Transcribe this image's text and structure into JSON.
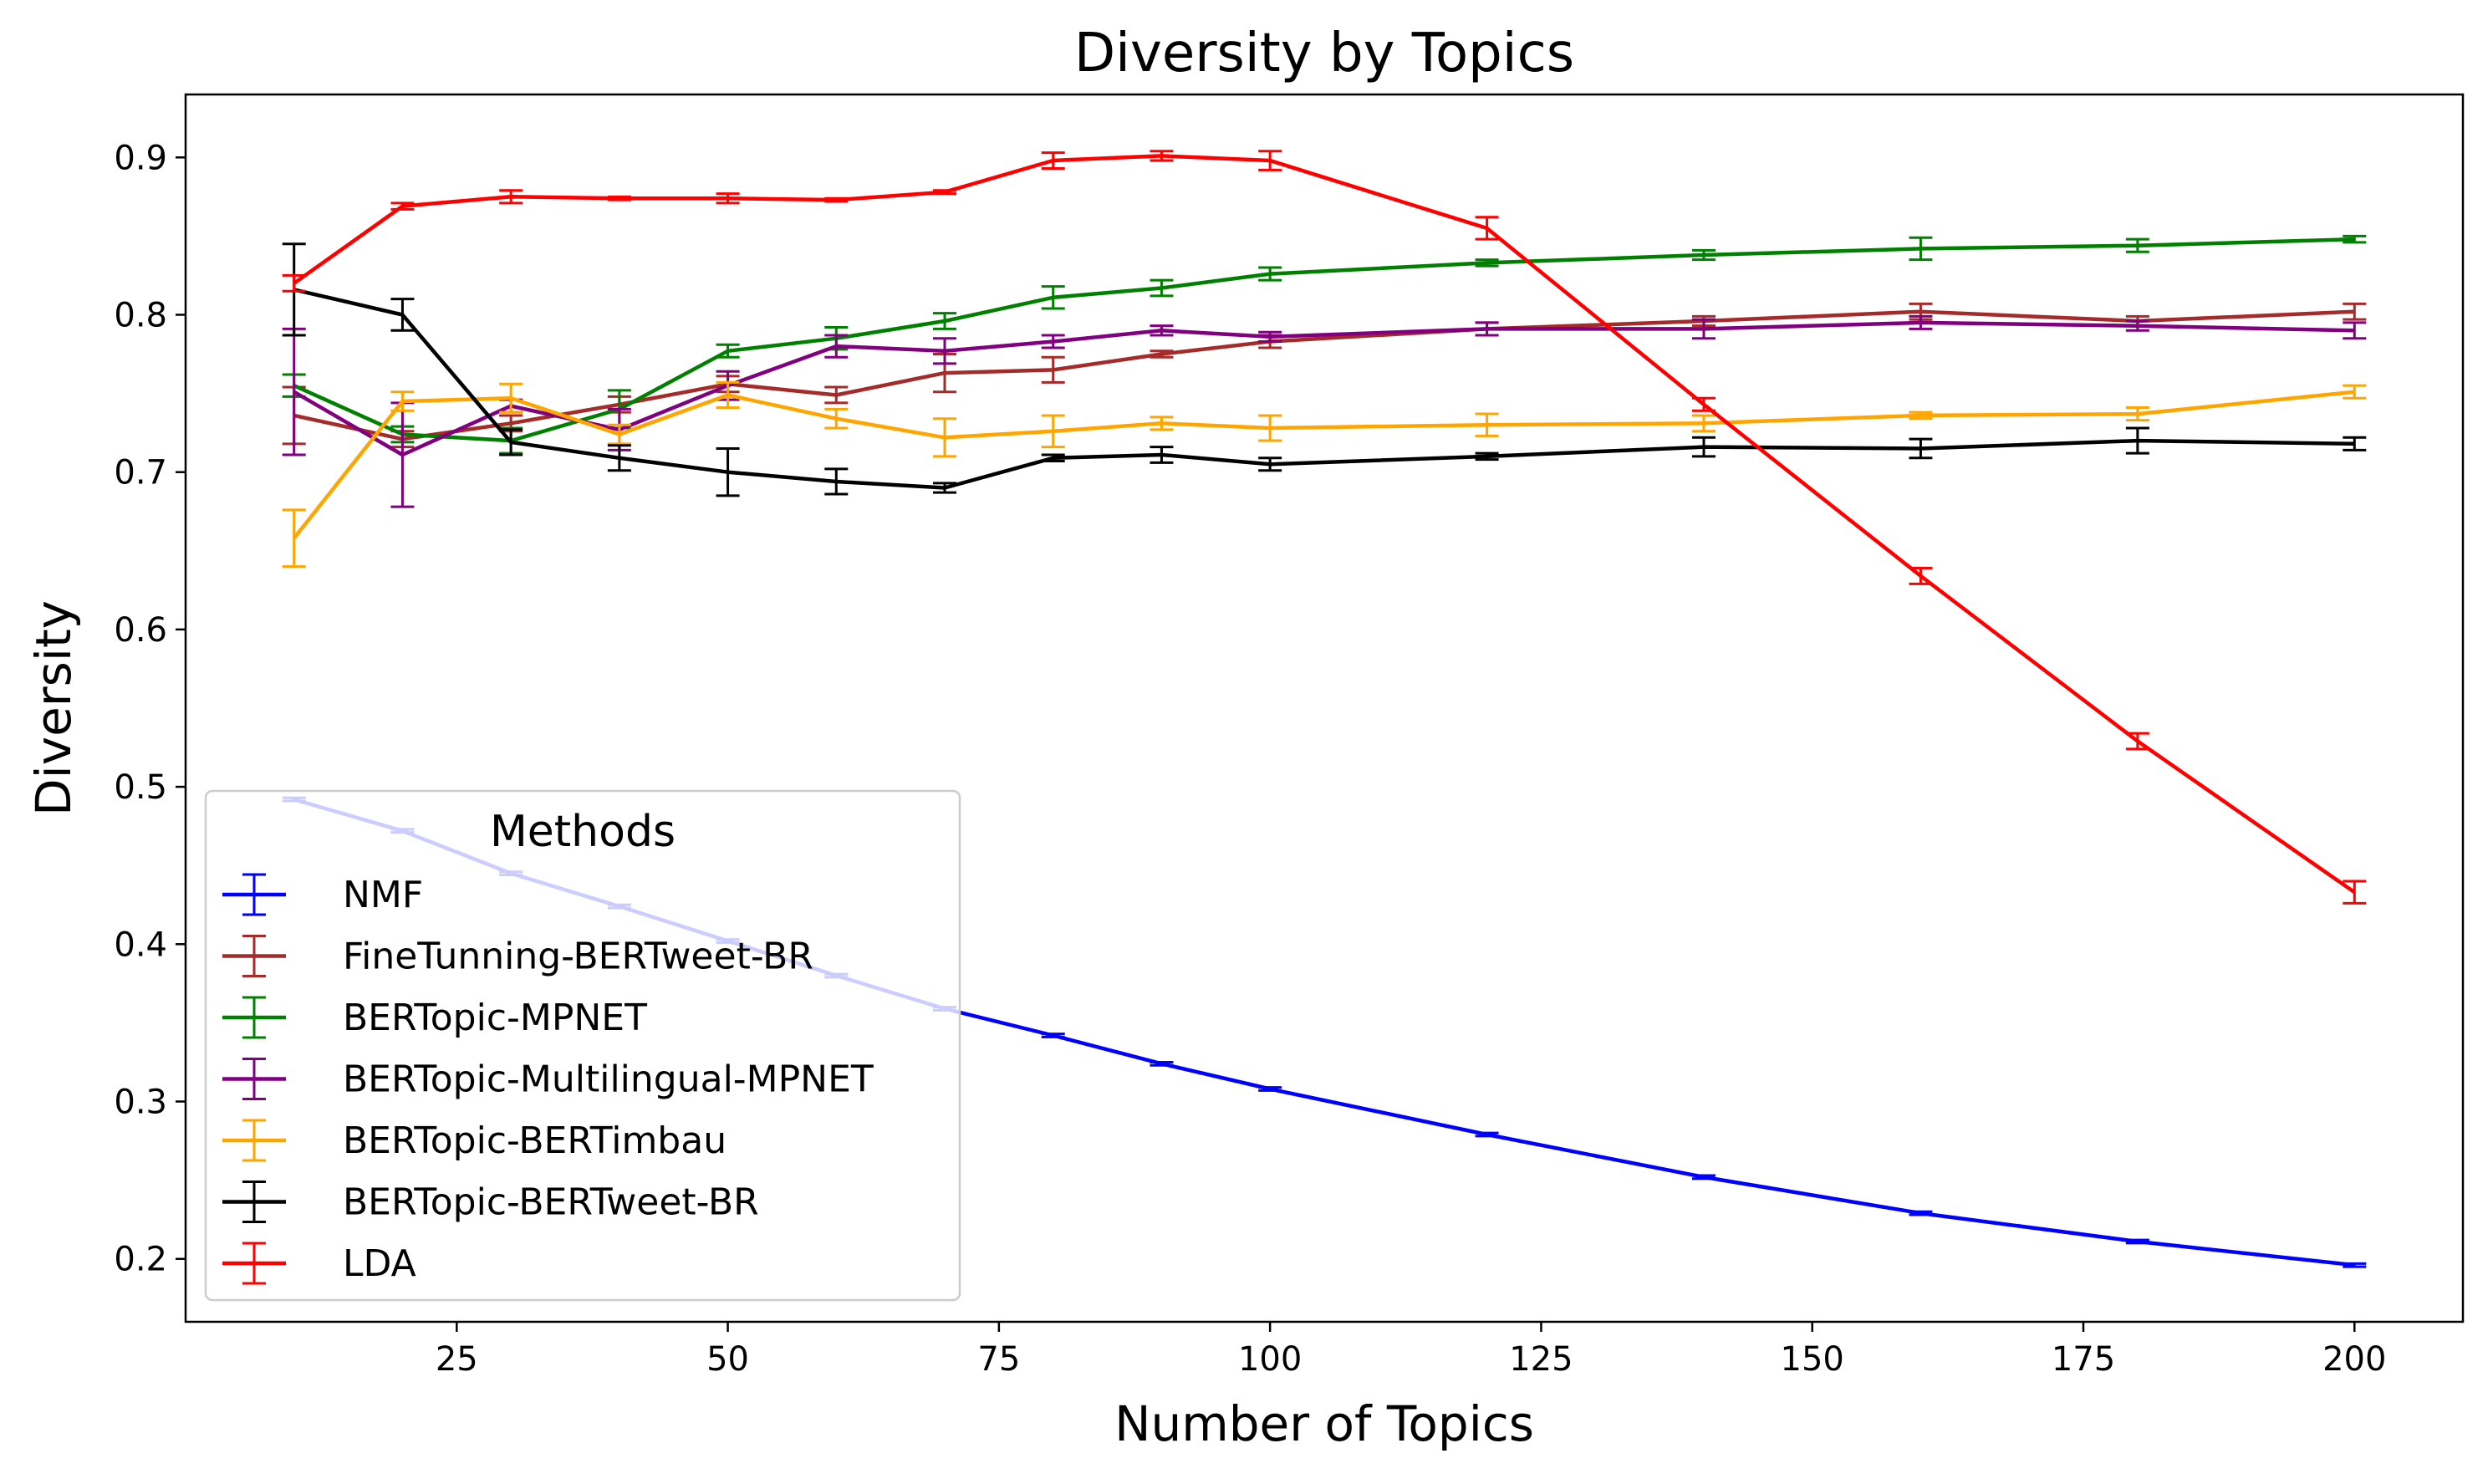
{
  "chart_data": {
    "type": "line",
    "title": "Diversity by Topics",
    "xlabel": "Number of Topics",
    "ylabel": "Diversity",
    "xlim": [
      0,
      210
    ],
    "ylim": [
      0.16,
      0.94
    ],
    "xticks": [
      25,
      50,
      75,
      100,
      125,
      150,
      175,
      200
    ],
    "yticks": [
      0.2,
      0.3,
      0.4,
      0.5,
      0.6,
      0.7,
      0.8,
      0.9
    ],
    "grid": false,
    "legend": {
      "title": "Methods",
      "placement": "lower-left"
    },
    "x": [
      10,
      20,
      30,
      40,
      50,
      60,
      70,
      80,
      90,
      100,
      120,
      140,
      160,
      180,
      200
    ],
    "series": [
      {
        "name": "NMF",
        "color": "#0000ff",
        "values": [
          0.492,
          0.472,
          0.445,
          0.424,
          0.402,
          0.38,
          0.359,
          0.342,
          0.324,
          0.308,
          0.279,
          0.252,
          0.229,
          0.211,
          0.196
        ],
        "errors": [
          0.001,
          0.001,
          0.001,
          0.001,
          0.001,
          0.001,
          0.001,
          0.001,
          0.001,
          0.001,
          0.001,
          0.001,
          0.001,
          0.001,
          0.001
        ]
      },
      {
        "name": "FineTunning-BERTweet-BR",
        "color": "#a52a2a",
        "values": [
          0.736,
          0.721,
          0.731,
          0.743,
          0.756,
          0.749,
          0.763,
          0.765,
          0.775,
          0.783,
          0.791,
          0.796,
          0.802,
          0.796,
          0.802
        ],
        "errors": [
          0.018,
          0.005,
          0.005,
          0.005,
          0.005,
          0.005,
          0.012,
          0.008,
          0.002,
          0.004,
          0.004,
          0.003,
          0.005,
          0.003,
          0.005
        ]
      },
      {
        "name": "BERTopic-MPNET",
        "color": "#008000",
        "values": [
          0.755,
          0.724,
          0.72,
          0.74,
          0.777,
          0.785,
          0.796,
          0.811,
          0.817,
          0.826,
          0.833,
          0.838,
          0.842,
          0.844,
          0.848
        ],
        "errors": [
          0.007,
          0.005,
          0.008,
          0.012,
          0.004,
          0.007,
          0.005,
          0.007,
          0.005,
          0.004,
          0.002,
          0.003,
          0.007,
          0.004,
          0.002
        ]
      },
      {
        "name": "BERTopic-Multilingual-MPNET",
        "color": "#800080",
        "values": [
          0.751,
          0.711,
          0.742,
          0.727,
          0.755,
          0.78,
          0.777,
          0.783,
          0.79,
          0.786,
          0.791,
          0.791,
          0.795,
          0.793,
          0.79
        ],
        "errors": [
          0.04,
          0.033,
          0.004,
          0.013,
          0.009,
          0.007,
          0.008,
          0.004,
          0.003,
          0.003,
          0.004,
          0.006,
          0.004,
          0.003,
          0.005
        ]
      },
      {
        "name": "BERTopic-BERTimbau",
        "color": "#ffa500",
        "values": [
          0.658,
          0.745,
          0.747,
          0.724,
          0.749,
          0.734,
          0.722,
          0.726,
          0.731,
          0.728,
          0.73,
          0.731,
          0.736,
          0.737,
          0.751
        ],
        "errors": [
          0.018,
          0.006,
          0.009,
          0.006,
          0.008,
          0.006,
          0.012,
          0.01,
          0.004,
          0.008,
          0.007,
          0.005,
          0.002,
          0.004,
          0.004
        ]
      },
      {
        "name": "BERTopic-BERTweet-BR",
        "color": "#000000",
        "values": [
          0.816,
          0.8,
          0.719,
          0.709,
          0.7,
          0.694,
          0.69,
          0.709,
          0.711,
          0.705,
          0.71,
          0.716,
          0.715,
          0.72,
          0.718
        ],
        "errors": [
          0.029,
          0.01,
          0.008,
          0.008,
          0.015,
          0.008,
          0.003,
          0.002,
          0.005,
          0.004,
          0.002,
          0.006,
          0.006,
          0.008,
          0.004
        ]
      },
      {
        "name": "LDA",
        "color": "#ff0000",
        "values": [
          0.82,
          0.869,
          0.875,
          0.874,
          0.874,
          0.873,
          0.878,
          0.898,
          0.901,
          0.898,
          0.855,
          0.743,
          0.634,
          0.529,
          0.433
        ],
        "errors": [
          0.005,
          0.002,
          0.004,
          0.001,
          0.003,
          0.001,
          0.001,
          0.005,
          0.003,
          0.006,
          0.007,
          0.004,
          0.005,
          0.005,
          0.007
        ]
      }
    ]
  }
}
